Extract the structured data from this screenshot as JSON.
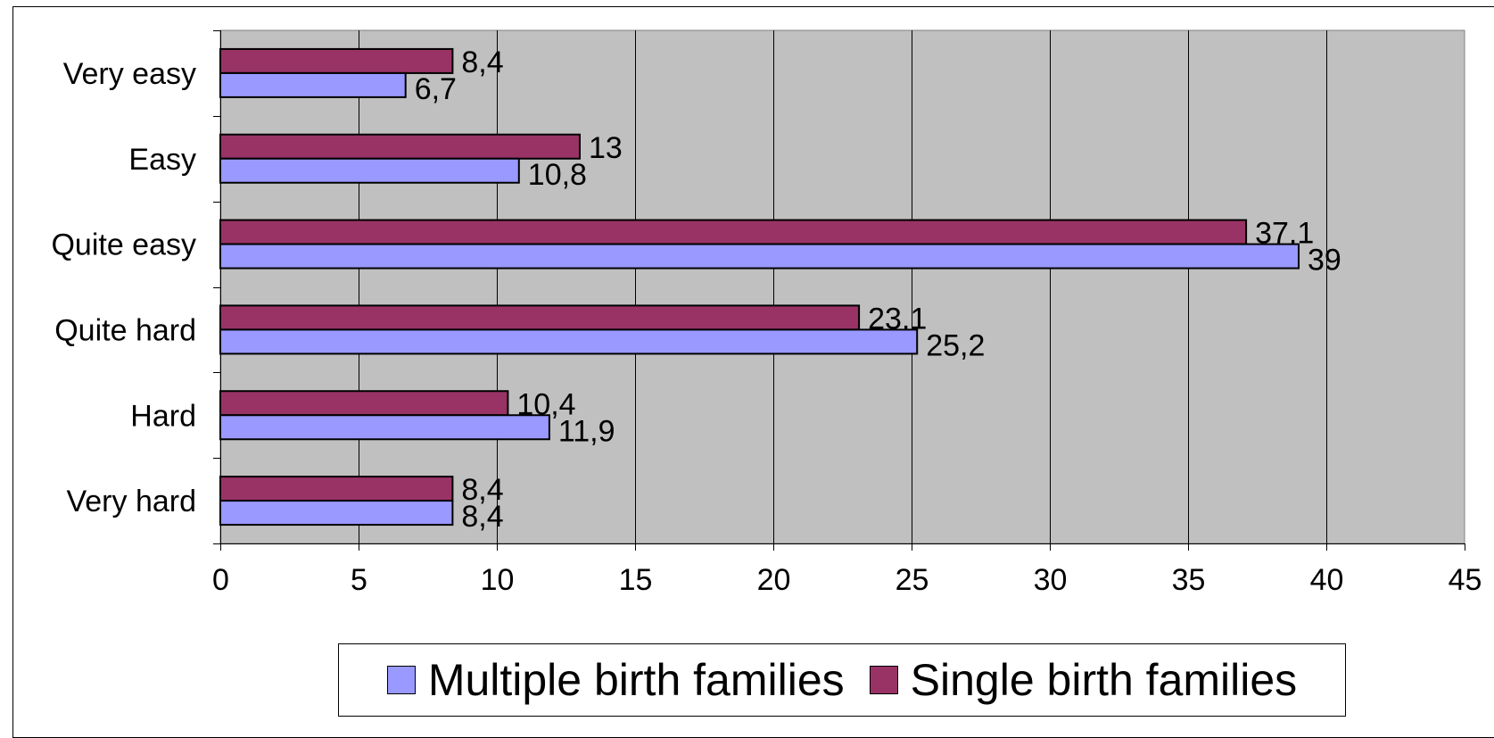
{
  "chart_data": {
    "type": "bar",
    "orientation": "horizontal",
    "title": "",
    "xlabel": "",
    "ylabel": "",
    "categories": [
      "Very easy",
      "Easy",
      "Quite easy",
      "Quite hard",
      "Hard",
      "Very hard"
    ],
    "series": [
      {
        "name": "Multiple birth families",
        "color": "#9999ff",
        "values": [
          6.7,
          10.8,
          39,
          25.2,
          11.9,
          8.4
        ],
        "labels": [
          "6,7",
          "10,8",
          "39",
          "25,2",
          "11,9",
          "8,4"
        ]
      },
      {
        "name": "Single birth families",
        "color": "#993366",
        "values": [
          8.4,
          13,
          37.1,
          23.1,
          10.4,
          8.4
        ],
        "labels": [
          "8,4",
          "13",
          "37,1",
          "23,1",
          "10,4",
          "8,4"
        ]
      }
    ],
    "xlim": [
      0,
      45
    ],
    "xticks": [
      0,
      5,
      10,
      15,
      20,
      25,
      30,
      35,
      40,
      45
    ],
    "grid": true,
    "plot_background": "#c0c0c0",
    "legend_position": "bottom"
  }
}
